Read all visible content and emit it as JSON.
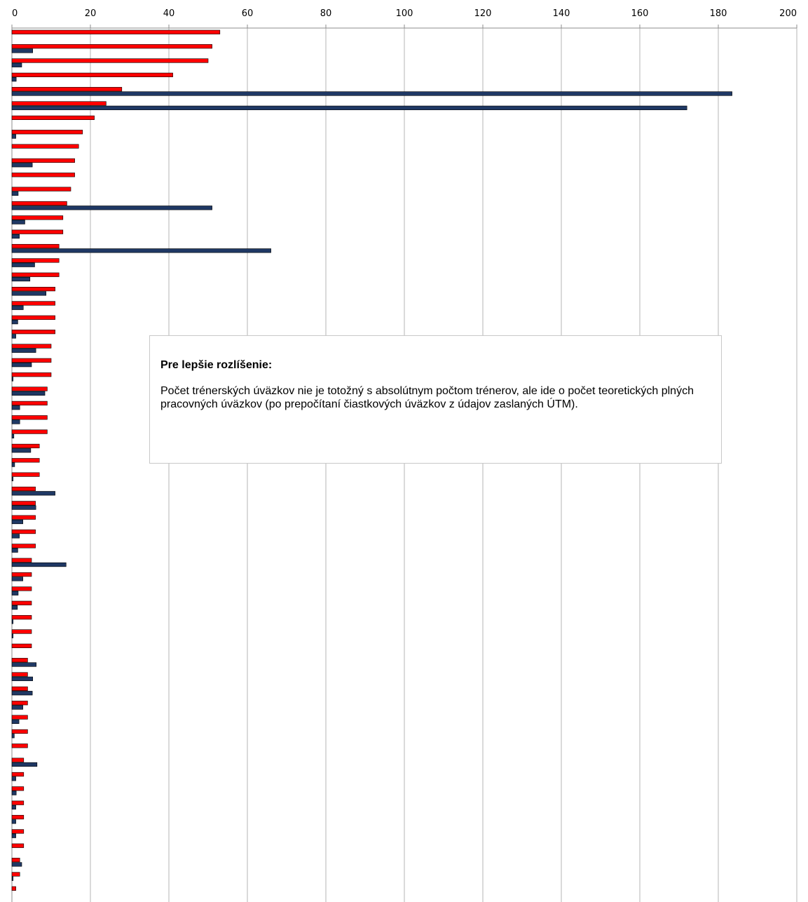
{
  "chart_data": {
    "type": "bar",
    "orientation": "horizontal",
    "xlim": [
      0,
      200
    ],
    "xticks": [
      0,
      20,
      40,
      60,
      80,
      100,
      120,
      140,
      160,
      180,
      200
    ],
    "x_axis_position": "top",
    "grid": "vertical",
    "series": [
      {
        "color": "#ff0000",
        "values": [
          53,
          51,
          50,
          41,
          28,
          24,
          21,
          18,
          17,
          16,
          16,
          15,
          14,
          13,
          13,
          12,
          12,
          12,
          11,
          11,
          11,
          11,
          10,
          10,
          10,
          9,
          9,
          9,
          9,
          7,
          7,
          7,
          6,
          6,
          6,
          6,
          6,
          5,
          5,
          5,
          5,
          5,
          5,
          5,
          4,
          4,
          4,
          4,
          4,
          4,
          4,
          3,
          3,
          3,
          3,
          3,
          3,
          3,
          2,
          2,
          1
        ]
      },
      {
        "color": "#1f3864",
        "values": [
          0,
          5.3,
          2.5,
          1.1,
          183.5,
          172,
          0,
          1,
          0,
          5.2,
          0,
          1.6,
          51,
          3.3,
          1.9,
          66,
          5.8,
          4.6,
          8.7,
          2.9,
          1.5,
          1,
          6.1,
          5,
          0.3,
          8.4,
          2,
          2,
          0.5,
          4.8,
          0.7,
          0.3,
          11,
          6.1,
          2.8,
          1.9,
          1.5,
          13.8,
          2.8,
          1.6,
          1.4,
          0.3,
          0.3,
          0,
          6.2,
          5.3,
          5.2,
          2.8,
          1.8,
          0.6,
          0,
          6.4,
          1,
          1.1,
          1,
          1,
          1,
          0,
          2.5,
          0.3,
          0
        ]
      }
    ]
  },
  "note": {
    "title": "Pre lepšie rozlíšenie:",
    "body": "Počet trénerských úväzkov nie je totožný s absolútnym počtom trénerov, ale  ide o počet teoretických plných pracovných úväzkov (po prepočítaní čiastkových úväzkov z údajov zaslaných ÚTM)."
  }
}
